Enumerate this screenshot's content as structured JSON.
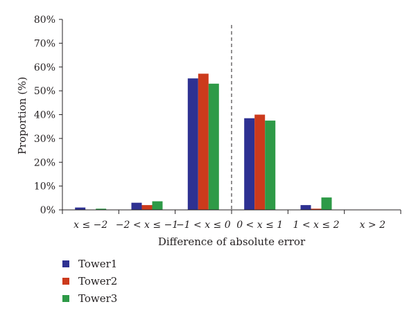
{
  "chart_data": {
    "type": "bar",
    "xlabel": "Difference of absolute error",
    "ylabel": "Proportion (%)",
    "ylim": [
      0,
      80
    ],
    "yticks": [
      "0%",
      "10%",
      "20%",
      "30%",
      "40%",
      "50%",
      "60%",
      "70%",
      "80%"
    ],
    "categories": [
      "x ≤ −2",
      "−2 < x ≤ −1",
      "−1 < x ≤ 0",
      "0 < x ≤ 1",
      "1 < x ≤ 2",
      "x > 2"
    ],
    "series": [
      {
        "name": "Tower1",
        "color": "#2e3192",
        "values": [
          1.0,
          3.0,
          55.2,
          38.5,
          2.0,
          0.0
        ]
      },
      {
        "name": "Tower2",
        "color": "#cc3a1c",
        "values": [
          0.0,
          2.0,
          57.2,
          40.0,
          0.5,
          0.0
        ]
      },
      {
        "name": "Tower3",
        "color": "#2e9a47",
        "values": [
          0.5,
          3.6,
          53.0,
          37.5,
          5.2,
          0.0
        ]
      }
    ],
    "divider": {
      "style": "dashed",
      "position": "between categories 3 and 4"
    },
    "legend_position": "bottom-left",
    "grid": false
  }
}
